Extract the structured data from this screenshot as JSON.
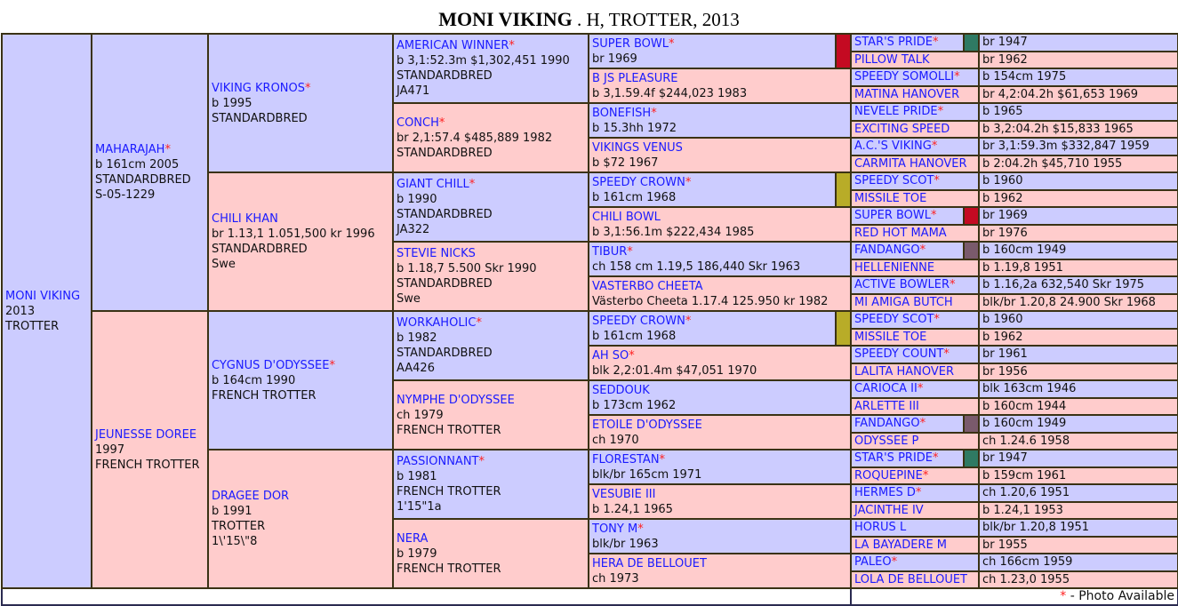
{
  "title": {
    "name": "MONI VIKING",
    "rest": " . H, TROTTER, 2013"
  },
  "legend": {
    "star": "*",
    "text": " - Photo Available"
  },
  "colors": {
    "sire_bg": "#ccccff",
    "dam_bg": "#ffcccc",
    "name": "#1a1aff",
    "star": "#ff2020",
    "border": "#3a3214"
  },
  "marker_colors": {
    "red": "#c40a22",
    "olive": "#b8ac28",
    "green": "#2f7a63",
    "mauve": "#7a5a6c"
  },
  "gen1": [
    {
      "name": "MONI VIKING",
      "star": false,
      "lines": [
        "2013",
        "TROTTER"
      ]
    }
  ],
  "gen2": [
    {
      "name": "MAHARAJAH",
      "star": true,
      "lines": [
        "b 161cm 2005",
        "STANDARDBRED",
        "S-05-1229"
      ]
    },
    {
      "name": "JEUNESSE DOREE",
      "star": false,
      "lines": [
        "1997",
        "FRENCH TROTTER"
      ]
    }
  ],
  "gen3": [
    {
      "name": "VIKING KRONOS",
      "star": true,
      "lines": [
        "b 1995",
        "STANDARDBRED"
      ]
    },
    {
      "name": "CHILI KHAN",
      "star": false,
      "lines": [
        "br 1.13,1 1.051,500 kr 1996",
        "STANDARDBRED",
        "Swe"
      ]
    },
    {
      "name": "CYGNUS D'ODYSSEE",
      "star": true,
      "lines": [
        "b 164cm 1990",
        "FRENCH TROTTER"
      ]
    },
    {
      "name": "DRAGEE DOR",
      "star": false,
      "lines": [
        "b 1991",
        "TROTTER",
        "1\\'15\\\"8"
      ]
    }
  ],
  "gen4": [
    {
      "name": "AMERICAN WINNER",
      "star": true,
      "lines": [
        "b 3,1:52.3m $1,302,451 1990",
        "STANDARDBRED",
        "JA471"
      ]
    },
    {
      "name": "CONCH",
      "star": true,
      "lines": [
        "br 2,1:57.4 $485,889 1982",
        "STANDARDBRED"
      ]
    },
    {
      "name": "GIANT CHILL",
      "star": true,
      "lines": [
        "b 1990",
        "STANDARDBRED",
        "JA322"
      ]
    },
    {
      "name": "STEVIE NICKS",
      "star": false,
      "lines": [
        "b 1.18,7 5.500 Skr 1990",
        "STANDARDBRED",
        "Swe"
      ]
    },
    {
      "name": "WORKAHOLIC",
      "star": true,
      "lines": [
        "b 1982",
        "STANDARDBRED",
        "AA426"
      ]
    },
    {
      "name": "NYMPHE D'ODYSSEE",
      "star": false,
      "lines": [
        "ch 1979",
        "FRENCH TROTTER"
      ]
    },
    {
      "name": "PASSIONNANT",
      "star": true,
      "lines": [
        "b 1981",
        "FRENCH TROTTER",
        "1'15\"1a"
      ]
    },
    {
      "name": "NERA",
      "star": false,
      "lines": [
        "b 1979",
        "FRENCH TROTTER"
      ]
    }
  ],
  "gen5": [
    {
      "name": "SUPER BOWL",
      "star": true,
      "lines": [
        "br 1969"
      ],
      "marker": "red"
    },
    {
      "name": "B JS PLEASURE",
      "star": false,
      "lines": [
        "b 3,1.59.4f $244,023 1983"
      ]
    },
    {
      "name": "BONEFISH",
      "star": true,
      "lines": [
        "b 15.3hh 1972"
      ]
    },
    {
      "name": "VIKINGS VENUS",
      "star": false,
      "lines": [
        "b $72 1967"
      ]
    },
    {
      "name": "SPEEDY CROWN",
      "star": true,
      "lines": [
        "b 161cm 1968"
      ],
      "marker": "olive"
    },
    {
      "name": "CHILI BOWL",
      "star": false,
      "lines": [
        "b 3,1:56.1m $222,434 1985"
      ]
    },
    {
      "name": "TIBUR",
      "star": true,
      "lines": [
        "ch 158 cm 1.19,5 186,440 Skr 1963"
      ]
    },
    {
      "name": "VASTERBO CHEETA",
      "star": false,
      "lines": [
        "Västerbo Cheeta 1.17.4 125.950 kr 1982"
      ]
    },
    {
      "name": "SPEEDY CROWN",
      "star": true,
      "lines": [
        "b 161cm 1968"
      ],
      "marker": "olive"
    },
    {
      "name": "AH SO",
      "star": true,
      "lines": [
        "blk 2,2:01.4m $47,051 1970"
      ]
    },
    {
      "name": "SEDDOUK",
      "star": false,
      "lines": [
        "b 173cm 1962"
      ]
    },
    {
      "name": "ETOILE D'ODYSSEE",
      "star": false,
      "lines": [
        "ch 1970"
      ]
    },
    {
      "name": "FLORESTAN",
      "star": true,
      "lines": [
        "blk/br 165cm 1971"
      ]
    },
    {
      "name": "VESUBIE III",
      "star": false,
      "lines": [
        "b 1.24,1 1965"
      ]
    },
    {
      "name": "TONY M",
      "star": true,
      "lines": [
        "blk/br 1963"
      ]
    },
    {
      "name": "HERA DE BELLOUET",
      "star": false,
      "lines": [
        "ch 1973"
      ]
    }
  ],
  "gen6": [
    {
      "name": "STAR'S PRIDE",
      "star": true,
      "detail": "br 1947",
      "marker": "green"
    },
    {
      "name": "PILLOW TALK",
      "star": false,
      "detail": "br 1962"
    },
    {
      "name": "SPEEDY SOMOLLI",
      "star": true,
      "detail": "b 154cm 1975"
    },
    {
      "name": "MATINA HANOVER",
      "star": false,
      "detail": "br 4,2:04.2h $61,653 1969"
    },
    {
      "name": "NEVELE PRIDE",
      "star": true,
      "detail": "b 1965"
    },
    {
      "name": "EXCITING SPEED",
      "star": false,
      "detail": "b 3,2:04.2h $15,833 1965"
    },
    {
      "name": "A.C.'S VIKING",
      "star": true,
      "detail": "br 3,1:59.3m $332,847 1959"
    },
    {
      "name": "CARMITA HANOVER",
      "star": false,
      "detail": "b 2:04.2h $45,710 1955"
    },
    {
      "name": "SPEEDY SCOT",
      "star": true,
      "detail": "b 1960"
    },
    {
      "name": "MISSILE TOE",
      "star": false,
      "detail": "b 1962"
    },
    {
      "name": "SUPER BOWL",
      "star": true,
      "detail": "br 1969",
      "marker": "red"
    },
    {
      "name": "RED HOT MAMA",
      "star": false,
      "detail": "br 1976"
    },
    {
      "name": "FANDANGO",
      "star": true,
      "detail": "b 160cm 1949",
      "marker": "mauve"
    },
    {
      "name": "HELLENIENNE",
      "star": false,
      "detail": "b 1.19,8 1951"
    },
    {
      "name": "ACTIVE BOWLER",
      "star": true,
      "detail": "b 1.16,2a 632,540 Skr 1975"
    },
    {
      "name": "MI AMIGA BUTCH",
      "star": false,
      "detail": "blk/br 1.20,8 24.900 Skr 1968"
    },
    {
      "name": "SPEEDY SCOT",
      "star": true,
      "detail": "b 1960"
    },
    {
      "name": "MISSILE TOE",
      "star": false,
      "detail": "b 1962"
    },
    {
      "name": "SPEEDY COUNT",
      "star": true,
      "detail": "br 1961"
    },
    {
      "name": "LALITA HANOVER",
      "star": false,
      "detail": "br 1956"
    },
    {
      "name": "CARIOCA II",
      "star": true,
      "detail": "blk 163cm 1946"
    },
    {
      "name": "ARLETTE III",
      "star": false,
      "detail": "b 160cm 1944"
    },
    {
      "name": "FANDANGO",
      "star": true,
      "detail": "b 160cm 1949",
      "marker": "mauve"
    },
    {
      "name": "ODYSSEE P",
      "star": false,
      "detail": "ch 1.24.6 1958"
    },
    {
      "name": "STAR'S PRIDE",
      "star": true,
      "detail": "br 1947",
      "marker": "green"
    },
    {
      "name": "ROQUEPINE",
      "star": true,
      "detail": "b 159cm 1961"
    },
    {
      "name": "HERMES D",
      "star": true,
      "detail": "ch 1.20,6 1951"
    },
    {
      "name": "JACINTHE IV",
      "star": false,
      "detail": "b 1.24,1 1953"
    },
    {
      "name": "HORUS L",
      "star": false,
      "detail": "blk/br 1.20,8 1951"
    },
    {
      "name": "LA BAYADERE M",
      "star": false,
      "detail": "br 1955"
    },
    {
      "name": "PALEO",
      "star": true,
      "detail": "ch 166cm 1959"
    },
    {
      "name": "LOLA DE BELLOUET",
      "star": false,
      "detail": "ch 1.23,0 1955"
    }
  ]
}
